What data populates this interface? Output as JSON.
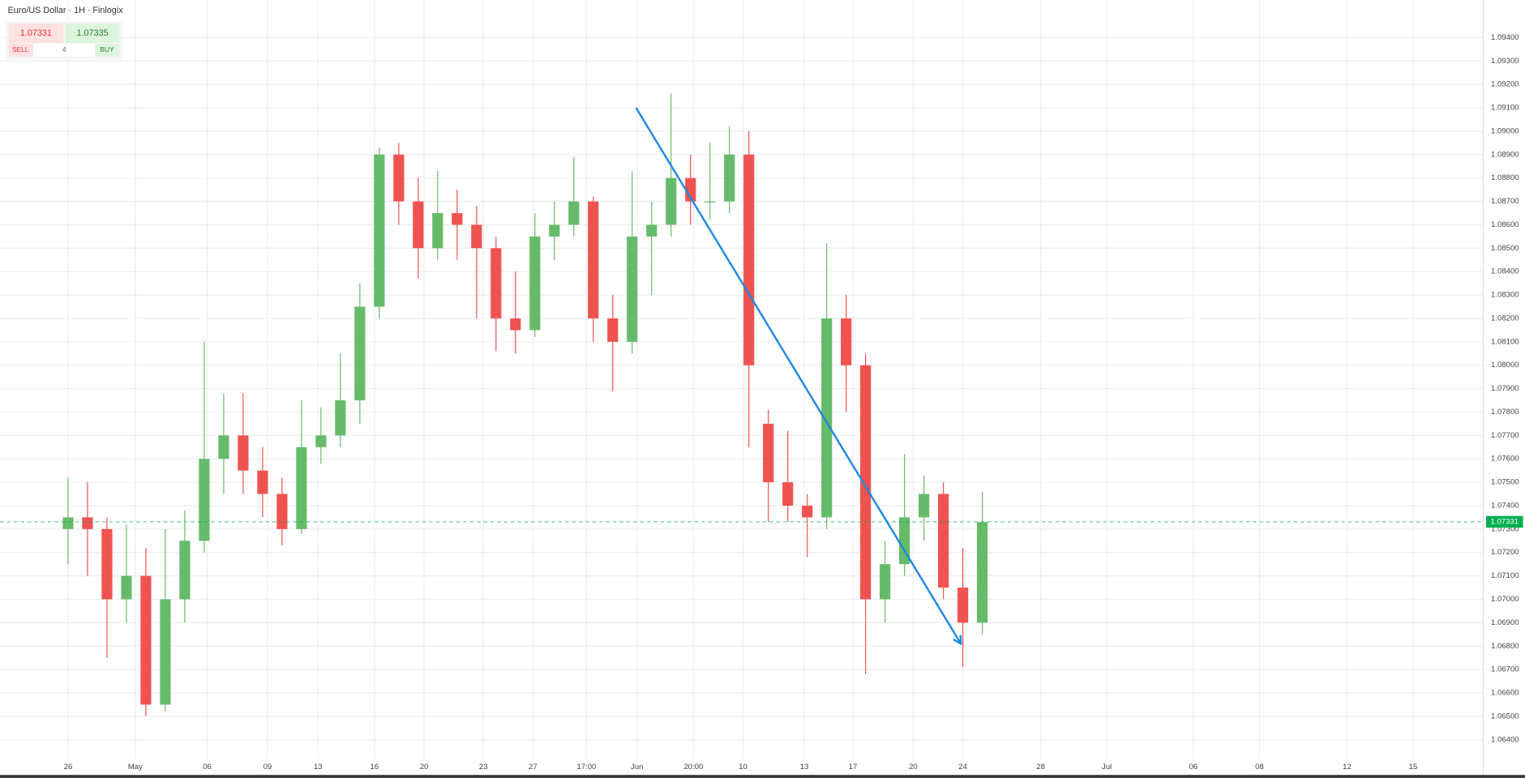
{
  "header": {
    "title": "Euro/US Dollar · 1H · Finlogix",
    "sell_price": 1.07331,
    "buy_price": 1.07335,
    "sell_label": "SELL",
    "buy_label": "BUY",
    "quantity": 4
  },
  "chart_data": {
    "type": "candlestick",
    "up_color": "#66bb6a",
    "down_color": "#ef5350",
    "grid": true,
    "x": [
      0,
      1,
      2,
      3,
      4,
      5,
      6,
      7,
      8,
      9,
      10,
      11,
      12,
      13,
      14,
      15,
      16,
      17,
      18,
      19,
      20,
      21,
      22,
      23,
      24,
      25,
      26,
      27,
      28,
      29,
      30,
      31,
      32,
      33,
      34,
      35,
      36,
      37,
      38,
      39,
      40,
      41,
      42,
      43,
      44,
      45,
      46,
      47
    ],
    "open": [
      1.073,
      1.0735,
      1.073,
      1.07,
      1.071,
      1.0655,
      1.07,
      1.0725,
      1.076,
      1.077,
      1.0755,
      1.0745,
      1.073,
      1.0765,
      1.077,
      1.0785,
      1.0825,
      1.089,
      1.087,
      1.085,
      1.0865,
      1.086,
      1.085,
      1.082,
      1.0815,
      1.0855,
      1.086,
      1.087,
      1.082,
      1.081,
      1.0855,
      1.086,
      1.088,
      1.087,
      1.087,
      1.089,
      1.0775,
      1.075,
      1.074,
      1.0735,
      1.082,
      1.08,
      1.07,
      1.0715,
      1.0735,
      1.0745,
      1.0705,
      1.069
    ],
    "high": [
      1.0752,
      1.075,
      1.0735,
      1.0732,
      1.0722,
      1.073,
      1.0738,
      1.081,
      1.0788,
      1.0788,
      1.0765,
      1.0752,
      1.0785,
      1.0782,
      1.0805,
      1.0835,
      1.0893,
      1.0895,
      1.088,
      1.0883,
      1.0875,
      1.0868,
      1.0855,
      1.084,
      1.0865,
      1.087,
      1.0889,
      1.0872,
      1.083,
      1.0883,
      1.087,
      1.0916,
      1.089,
      1.0895,
      1.0902,
      1.09,
      1.0781,
      1.0772,
      1.0745,
      1.0852,
      1.083,
      1.0805,
      1.0725,
      1.0762,
      1.0753,
      1.075,
      1.0722,
      1.0746
    ],
    "low": [
      1.0715,
      1.071,
      1.0675,
      1.069,
      1.065,
      1.0652,
      1.069,
      1.072,
      1.0745,
      1.0745,
      1.0735,
      1.0723,
      1.0728,
      1.0758,
      1.0765,
      1.0775,
      1.082,
      1.086,
      1.0837,
      1.0845,
      1.0845,
      1.082,
      1.0806,
      1.0805,
      1.0812,
      1.0845,
      1.0855,
      1.081,
      1.0789,
      1.0805,
      1.083,
      1.0855,
      1.086,
      1.0862,
      1.0865,
      1.0765,
      1.0733,
      1.0733,
      1.0718,
      1.073,
      1.078,
      1.0668,
      1.069,
      1.071,
      1.0725,
      1.07,
      1.0671,
      1.0685
    ],
    "close": [
      1.0735,
      1.073,
      1.07,
      1.071,
      1.0655,
      1.07,
      1.0725,
      1.076,
      1.077,
      1.0755,
      1.0745,
      1.073,
      1.0765,
      1.077,
      1.0785,
      1.0825,
      1.089,
      1.087,
      1.085,
      1.0865,
      1.086,
      1.085,
      1.082,
      1.0815,
      1.0855,
      1.086,
      1.087,
      1.082,
      1.081,
      1.0855,
      1.086,
      1.088,
      1.087,
      1.087,
      1.089,
      1.08,
      1.075,
      1.074,
      1.0735,
      1.082,
      1.08,
      1.07,
      1.0715,
      1.0735,
      1.0745,
      1.0705,
      1.069,
      1.0733
    ],
    "last_price": 1.07331,
    "last_price_color": "#00b050",
    "trendline": {
      "x": [
        29.2,
        45.9
      ],
      "y": [
        1.091,
        1.0681
      ],
      "color": "#1e88e5"
    },
    "xlim": [
      -3.5,
      72.75
    ],
    "xticks": [
      {
        "value": 0,
        "label": "26"
      },
      {
        "value": 3.45,
        "label": "May"
      },
      {
        "value": 7.15,
        "label": "06"
      },
      {
        "value": 10.25,
        "label": "09"
      },
      {
        "value": 12.85,
        "label": "13"
      },
      {
        "value": 15.75,
        "label": "16"
      },
      {
        "value": 18.3,
        "label": "20"
      },
      {
        "value": 21.35,
        "label": "23"
      },
      {
        "value": 23.9,
        "label": "27"
      },
      {
        "value": 26.65,
        "label": "17:00"
      },
      {
        "value": 29.25,
        "label": "Jun"
      },
      {
        "value": 32.15,
        "label": "20:00"
      },
      {
        "value": 34.7,
        "label": "10"
      },
      {
        "value": 37.85,
        "label": "13"
      },
      {
        "value": 40.35,
        "label": "17"
      },
      {
        "value": 43.45,
        "label": "20"
      },
      {
        "value": 46,
        "label": "24"
      },
      {
        "value": 50,
        "label": "28"
      },
      {
        "value": 53.4,
        "label": "Jul"
      },
      {
        "value": 57.85,
        "label": "06"
      },
      {
        "value": 61.25,
        "label": "08"
      },
      {
        "value": 65.75,
        "label": "12"
      },
      {
        "value": 69.15,
        "label": "15"
      }
    ],
    "ylim": [
      1.0632,
      1.0956
    ],
    "yticks": [
      {
        "value": 1.064,
        "label": "1.06400"
      },
      {
        "value": 1.065,
        "label": "1.06500"
      },
      {
        "value": 1.066,
        "label": "1.06600"
      },
      {
        "value": 1.067,
        "label": "1.06700"
      },
      {
        "value": 1.068,
        "label": "1.06800"
      },
      {
        "value": 1.069,
        "label": "1.06900"
      },
      {
        "value": 1.07,
        "label": "1.07000"
      },
      {
        "value": 1.071,
        "label": "1.07100"
      },
      {
        "value": 1.072,
        "label": "1.07200"
      },
      {
        "value": 1.073,
        "label": "1.07300"
      },
      {
        "value": 1.074,
        "label": "1.07400"
      },
      {
        "value": 1.075,
        "label": "1.07500"
      },
      {
        "value": 1.076,
        "label": "1.07600"
      },
      {
        "value": 1.077,
        "label": "1.07700"
      },
      {
        "value": 1.078,
        "label": "1.07800"
      },
      {
        "value": 1.079,
        "label": "1.07900"
      },
      {
        "value": 1.08,
        "label": "1.08000"
      },
      {
        "value": 1.081,
        "label": "1.08100"
      },
      {
        "value": 1.082,
        "label": "1.08200"
      },
      {
        "value": 1.083,
        "label": "1.08300"
      },
      {
        "value": 1.084,
        "label": "1.08400"
      },
      {
        "value": 1.085,
        "label": "1.08500"
      },
      {
        "value": 1.086,
        "label": "1.08600"
      },
      {
        "value": 1.087,
        "label": "1.08700"
      },
      {
        "value": 1.088,
        "label": "1.08800"
      },
      {
        "value": 1.089,
        "label": "1.08900"
      },
      {
        "value": 1.09,
        "label": "1.09000"
      },
      {
        "value": 1.091,
        "label": "1.09100"
      },
      {
        "value": 1.092,
        "label": "1.09200"
      },
      {
        "value": 1.093,
        "label": "1.09300"
      },
      {
        "value": 1.094,
        "label": "1.09400"
      }
    ]
  }
}
